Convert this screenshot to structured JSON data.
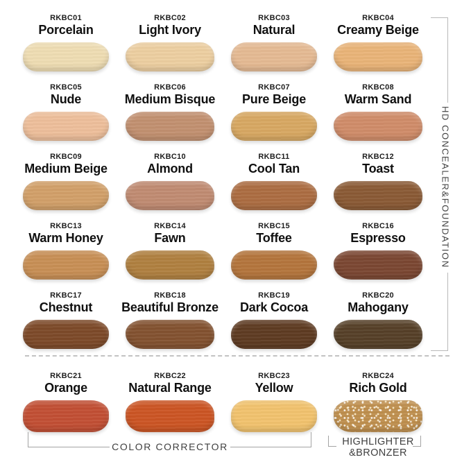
{
  "group_labels": {
    "hd_group": "HD CONCEALER&FOUNDATION",
    "color_corrector_group": "COLOR CORRECTOR",
    "highlighter_group_line1": "HIGHLIGHTER",
    "highlighter_group_line2": "&BRONZER"
  },
  "swatches": [
    {
      "code": "RKBC01",
      "name": "Porcelain",
      "color": "#EFDDB3",
      "sparkle": false
    },
    {
      "code": "RKBC02",
      "name": "Light Ivory",
      "color": "#EDCFA1",
      "sparkle": false
    },
    {
      "code": "RKBC03",
      "name": "Natural",
      "color": "#E5BA93",
      "sparkle": false
    },
    {
      "code": "RKBC04",
      "name": "Creamy Beige",
      "color": "#EAB478",
      "sparkle": false
    },
    {
      "code": "RKBC05",
      "name": "Nude",
      "color": "#EEBF9B",
      "sparkle": false
    },
    {
      "code": "RKBC06",
      "name": "Medium Bisque",
      "color": "#C29070",
      "sparkle": false
    },
    {
      "code": "RKBC07",
      "name": "Pure Beige",
      "color": "#D8A862",
      "sparkle": false
    },
    {
      "code": "RKBC08",
      "name": "Warm Sand",
      "color": "#D08C69",
      "sparkle": false
    },
    {
      "code": "RKBC09",
      "name": "Medium Beige",
      "color": "#D2A069",
      "sparkle": false
    },
    {
      "code": "RKBC10",
      "name": "Almond",
      "color": "#C08B72",
      "sparkle": false
    },
    {
      "code": "RKBC11",
      "name": "Cool Tan",
      "color": "#AC6D42",
      "sparkle": false
    },
    {
      "code": "RKBC12",
      "name": "Toast",
      "color": "#8A5A35",
      "sparkle": false
    },
    {
      "code": "RKBC13",
      "name": "Warm Honey",
      "color": "#C88F55",
      "sparkle": false
    },
    {
      "code": "RKBC14",
      "name": "Fawn",
      "color": "#B08040",
      "sparkle": false
    },
    {
      "code": "RKBC15",
      "name": "Toffee",
      "color": "#B4753C",
      "sparkle": false
    },
    {
      "code": "RKBC16",
      "name": "Espresso",
      "color": "#7B4732",
      "sparkle": false
    },
    {
      "code": "RKBC17",
      "name": "Chestnut",
      "color": "#7D4A29",
      "sparkle": false
    },
    {
      "code": "RKBC18",
      "name": "Beautiful Bronze",
      "color": "#835230",
      "sparkle": false
    },
    {
      "code": "RKBC19",
      "name": "Dark Cocoa",
      "color": "#5E3B22",
      "sparkle": false
    },
    {
      "code": "RKBC20",
      "name": "Mahogany",
      "color": "#564028",
      "sparkle": false
    },
    {
      "code": "RKBC21",
      "name": "Orange",
      "color": "#C24F34",
      "sparkle": false
    },
    {
      "code": "RKBC22",
      "name": "Natural Range",
      "color": "#CC5524",
      "sparkle": false
    },
    {
      "code": "RKBC23",
      "name": "Yellow",
      "color": "#F2C36E",
      "sparkle": false
    },
    {
      "code": "RKBC24",
      "name": "Rich Gold",
      "color": "#BF8F4E",
      "sparkle": true
    }
  ]
}
